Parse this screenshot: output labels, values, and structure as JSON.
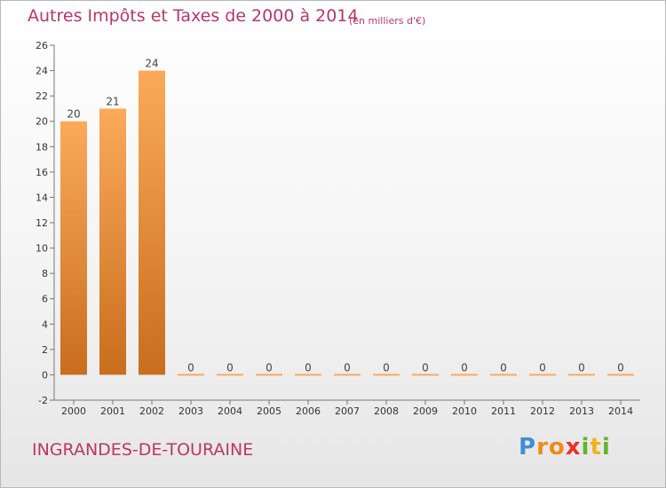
{
  "header": {
    "title": "Autres Impôts et Taxes de 2000 à 2014",
    "unit": "(en milliers d'€)"
  },
  "footer": {
    "commune": "INGRANDES-DE-TOURAINE",
    "logo_letters": [
      "P",
      "r",
      "o",
      "x",
      "i",
      "t",
      "i"
    ]
  },
  "colors": {
    "text_accent": "#b8376a",
    "bar_light": "#fbaa5a",
    "bar_dark": "#c86e1e",
    "logo": [
      "#3f8fd6",
      "#f08a1c",
      "#f08a1c",
      "#e8322a",
      "#62b52e",
      "#f0b21c",
      "#62b52e"
    ]
  },
  "chart_data": {
    "type": "bar",
    "categories": [
      "2000",
      "2001",
      "2002",
      "2003",
      "2004",
      "2005",
      "2006",
      "2007",
      "2008",
      "2009",
      "2010",
      "2011",
      "2012",
      "2013",
      "2014"
    ],
    "values": [
      20,
      21,
      24,
      0,
      0,
      0,
      0,
      0,
      0,
      0,
      0,
      0,
      0,
      0,
      0
    ],
    "data_labels": [
      "20",
      "21",
      "24",
      "0",
      "0",
      "0",
      "0",
      "0",
      "0",
      "0",
      "0",
      "0",
      "0",
      "0",
      "0"
    ],
    "ylim": [
      -2,
      26
    ],
    "yticks": [
      -2,
      0,
      2,
      4,
      6,
      8,
      10,
      12,
      14,
      16,
      18,
      20,
      22,
      24,
      26
    ],
    "grid": false,
    "legend": "none"
  }
}
